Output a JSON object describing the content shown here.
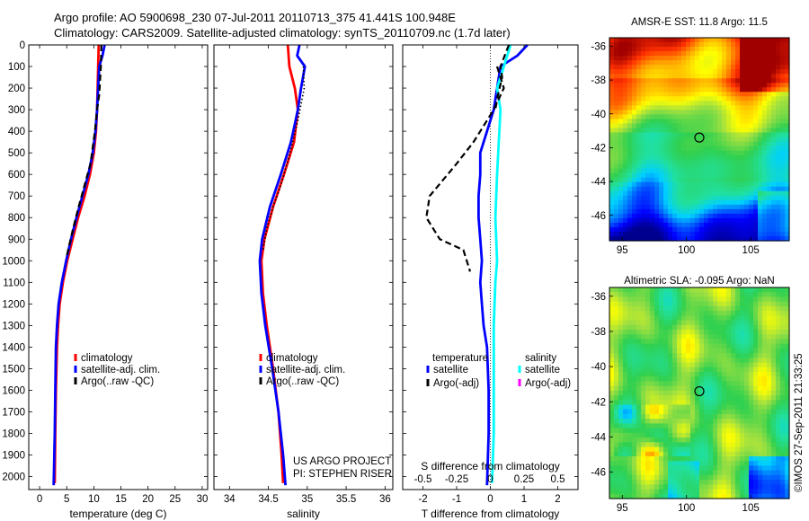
{
  "header": {
    "line1": "Argo profile: AO 5900698_230 07-Jul-2011 20110713_375 41.441S 100.948E",
    "line2": "Climatology: CARS2009. Satellite-adjusted climatology: synTS_20110709.nc (1.7d later)"
  },
  "credit": {
    "project": "US ARGO PROJECT",
    "pi": "PI: STEPHEN RISER",
    "imos": "©IMOS 27-Sep-2011 21:33:25"
  },
  "colors": {
    "climatology": "#ff0000",
    "satellite": "#0000ff",
    "argo": "#000000",
    "sal_satellite": "#00ffff",
    "sal_argo": "#ff00ff"
  },
  "chart_data": [
    {
      "type": "line",
      "id": "temperature",
      "xlabel": "temperature (deg C)",
      "xlim": [
        -2,
        31
      ],
      "xticks": [
        0,
        5,
        10,
        15,
        20,
        25,
        30
      ],
      "ylim": [
        2060,
        0
      ],
      "yticks": [
        0,
        100,
        200,
        300,
        400,
        500,
        600,
        700,
        800,
        900,
        1000,
        1100,
        1200,
        1300,
        1400,
        1500,
        1600,
        1700,
        1800,
        1900,
        2000
      ],
      "legend": [
        "climatology",
        "satellite-adj. clim.",
        "Argo(..raw -QC)"
      ],
      "series": [
        {
          "name": "climatology",
          "style": "solid",
          "color": "#ff0000",
          "points": [
            [
              10.9,
              0
            ],
            [
              10.8,
              100
            ],
            [
              10.7,
              200
            ],
            [
              10.6,
              300
            ],
            [
              10.4,
              400
            ],
            [
              10.0,
              500
            ],
            [
              9.3,
              600
            ],
            [
              8.3,
              700
            ],
            [
              7.1,
              800
            ],
            [
              6.1,
              900
            ],
            [
              5.1,
              1000
            ],
            [
              4.3,
              1100
            ],
            [
              3.7,
              1200
            ],
            [
              3.4,
              1300
            ],
            [
              3.2,
              1400
            ],
            [
              3.0,
              1600
            ],
            [
              2.9,
              1800
            ],
            [
              2.8,
              2030
            ]
          ]
        },
        {
          "name": "satellite-adj. clim.",
          "style": "solid",
          "color": "#0000ff",
          "points": [
            [
              12.0,
              0
            ],
            [
              11.6,
              50
            ],
            [
              11.0,
              100
            ],
            [
              10.8,
              200
            ],
            [
              10.6,
              300
            ],
            [
              10.3,
              400
            ],
            [
              9.8,
              500
            ],
            [
              9.0,
              600
            ],
            [
              7.9,
              700
            ],
            [
              6.8,
              800
            ],
            [
              5.8,
              900
            ],
            [
              4.9,
              1000
            ],
            [
              4.1,
              1100
            ],
            [
              3.5,
              1200
            ],
            [
              3.2,
              1300
            ],
            [
              3.0,
              1400
            ],
            [
              2.9,
              1600
            ],
            [
              2.8,
              1800
            ],
            [
              2.6,
              2040
            ]
          ]
        },
        {
          "name": "Argo(..raw -QC)",
          "style": "dash",
          "color": "#000000",
          "points": [
            [
              11.4,
              0
            ],
            [
              11.3,
              100
            ],
            [
              11.0,
              230
            ],
            [
              10.6,
              300
            ],
            [
              10.2,
              400
            ],
            [
              9.4,
              550
            ],
            [
              8.3,
              650
            ],
            [
              7.2,
              750
            ],
            [
              6.1,
              860
            ],
            [
              5.0,
              980
            ]
          ]
        }
      ]
    },
    {
      "type": "line",
      "id": "salinity",
      "xlabel": "salinity",
      "xlim": [
        33.8,
        36.1
      ],
      "xticks": [
        34,
        34.5,
        35,
        35.5,
        36
      ],
      "ylim": [
        2060,
        0
      ],
      "legend": [
        "climatology",
        "satellite-adj. clim.",
        "Argo(..raw -QC)"
      ],
      "series": [
        {
          "name": "climatology",
          "style": "solid",
          "color": "#ff0000",
          "points": [
            [
              34.75,
              0
            ],
            [
              34.77,
              100
            ],
            [
              34.84,
              200
            ],
            [
              34.88,
              300
            ],
            [
              34.83,
              450
            ],
            [
              34.7,
              600
            ],
            [
              34.56,
              750
            ],
            [
              34.45,
              900
            ],
            [
              34.41,
              1000
            ],
            [
              34.43,
              1150
            ],
            [
              34.48,
              1300
            ],
            [
              34.56,
              1500
            ],
            [
              34.63,
              1700
            ],
            [
              34.67,
              1900
            ],
            [
              34.69,
              2030
            ]
          ]
        },
        {
          "name": "satellite-adj. clim.",
          "style": "solid",
          "color": "#0000ff",
          "points": [
            [
              34.9,
              0
            ],
            [
              34.87,
              50
            ],
            [
              34.97,
              100
            ],
            [
              34.92,
              200
            ],
            [
              34.88,
              300
            ],
            [
              34.79,
              450
            ],
            [
              34.66,
              600
            ],
            [
              34.52,
              750
            ],
            [
              34.42,
              900
            ],
            [
              34.39,
              1000
            ],
            [
              34.41,
              1150
            ],
            [
              34.46,
              1300
            ],
            [
              34.55,
              1500
            ],
            [
              34.63,
              1700
            ],
            [
              34.69,
              1900
            ],
            [
              34.72,
              2040
            ]
          ]
        },
        {
          "name": "Argo(..raw -QC)",
          "style": "dot",
          "color": "#000000",
          "points": [
            [
              34.95,
              100
            ],
            [
              34.96,
              200
            ],
            [
              34.88,
              350
            ],
            [
              34.78,
              500
            ],
            [
              34.66,
              650
            ],
            [
              34.56,
              750
            ],
            [
              34.48,
              850
            ],
            [
              34.43,
              950
            ]
          ]
        }
      ]
    },
    {
      "type": "line",
      "id": "difference",
      "xlabel": "T difference from climatology",
      "xlabel2": "S difference from climatology",
      "xlim": [
        -2.6,
        2.6
      ],
      "xticks": [
        -2,
        -1,
        0,
        1,
        2
      ],
      "xticks2": [
        -0.5,
        -0.25,
        0,
        0.25,
        0.5
      ],
      "ylim": [
        2060,
        0
      ],
      "legend": {
        "temperature": "temperature",
        "salinity": "salinity",
        "items": [
          "satellite",
          "Argo(-adj)",
          "satellite",
          "Argo(-adj)"
        ]
      },
      "series": [
        {
          "name": "T satellite",
          "style": "solid",
          "color": "#0000ff",
          "points": [
            [
              1.1,
              0
            ],
            [
              0.8,
              50
            ],
            [
              0.3,
              100
            ],
            [
              0.2,
              200
            ],
            [
              0.1,
              300
            ],
            [
              -0.1,
              400
            ],
            [
              -0.3,
              500
            ],
            [
              -0.3,
              600
            ],
            [
              -0.35,
              700
            ],
            [
              -0.35,
              800
            ],
            [
              -0.3,
              900
            ],
            [
              -0.25,
              1000
            ],
            [
              -0.3,
              1100
            ],
            [
              -0.25,
              1200
            ],
            [
              -0.2,
              1300
            ],
            [
              -0.1,
              1400
            ],
            [
              -0.05,
              1600
            ],
            [
              -0.05,
              1800
            ],
            [
              -0.1,
              2040
            ]
          ]
        },
        {
          "name": "S satellite",
          "style": "solid",
          "color": "#00ffff",
          "points": [
            [
              0.6,
              0
            ],
            [
              0.4,
              100
            ],
            [
              0.2,
              200
            ],
            [
              0.3,
              300
            ],
            [
              0.25,
              450
            ],
            [
              0.2,
              600
            ],
            [
              0.15,
              800
            ],
            [
              0.2,
              1000
            ],
            [
              0.15,
              1100
            ],
            [
              0.1,
              1300
            ],
            [
              0.1,
              1600
            ],
            [
              0.1,
              1800
            ],
            [
              0.05,
              2030
            ]
          ]
        },
        {
          "name": "T Argo(-adj)",
          "style": "dash",
          "color": "#000000",
          "points": [
            [
              0.2,
              100
            ],
            [
              0.4,
              200
            ],
            [
              0.1,
              300
            ],
            [
              -0.5,
              450
            ],
            [
              -1.0,
              550
            ],
            [
              -1.8,
              700
            ],
            [
              -1.9,
              800
            ],
            [
              -1.5,
              900
            ],
            [
              -0.8,
              950
            ],
            [
              -0.6,
              1050
            ]
          ]
        },
        {
          "name": "S Argo(-adj)",
          "style": "dash",
          "color": "#000000",
          "points": [
            [
              0.55,
              0
            ],
            [
              0.3,
              100
            ],
            [
              0.35,
              150
            ],
            [
              0.2,
              250
            ],
            [
              0.15,
              300
            ]
          ]
        }
      ]
    },
    {
      "type": "heatmap",
      "id": "sst",
      "title": "AMSR-E SST: 11.8 Argo: 11.5",
      "xlim": [
        94,
        108
      ],
      "xticks": [
        95,
        100,
        105
      ],
      "ylim": [
        -47.5,
        -35.5
      ],
      "yticks": [
        -36,
        -38,
        -40,
        -42,
        -44,
        -46
      ],
      "marker": [
        101,
        -41.4
      ]
    },
    {
      "type": "heatmap",
      "id": "sla",
      "title": "Altimetric SLA: -0.095 Argo: NaN",
      "xlim": [
        94,
        108
      ],
      "xticks": [
        95,
        100,
        105
      ],
      "ylim": [
        -47.5,
        -35.5
      ],
      "yticks": [
        -36,
        -38,
        -40,
        -42,
        -44,
        -46
      ],
      "marker": [
        101,
        -41.4
      ]
    }
  ]
}
